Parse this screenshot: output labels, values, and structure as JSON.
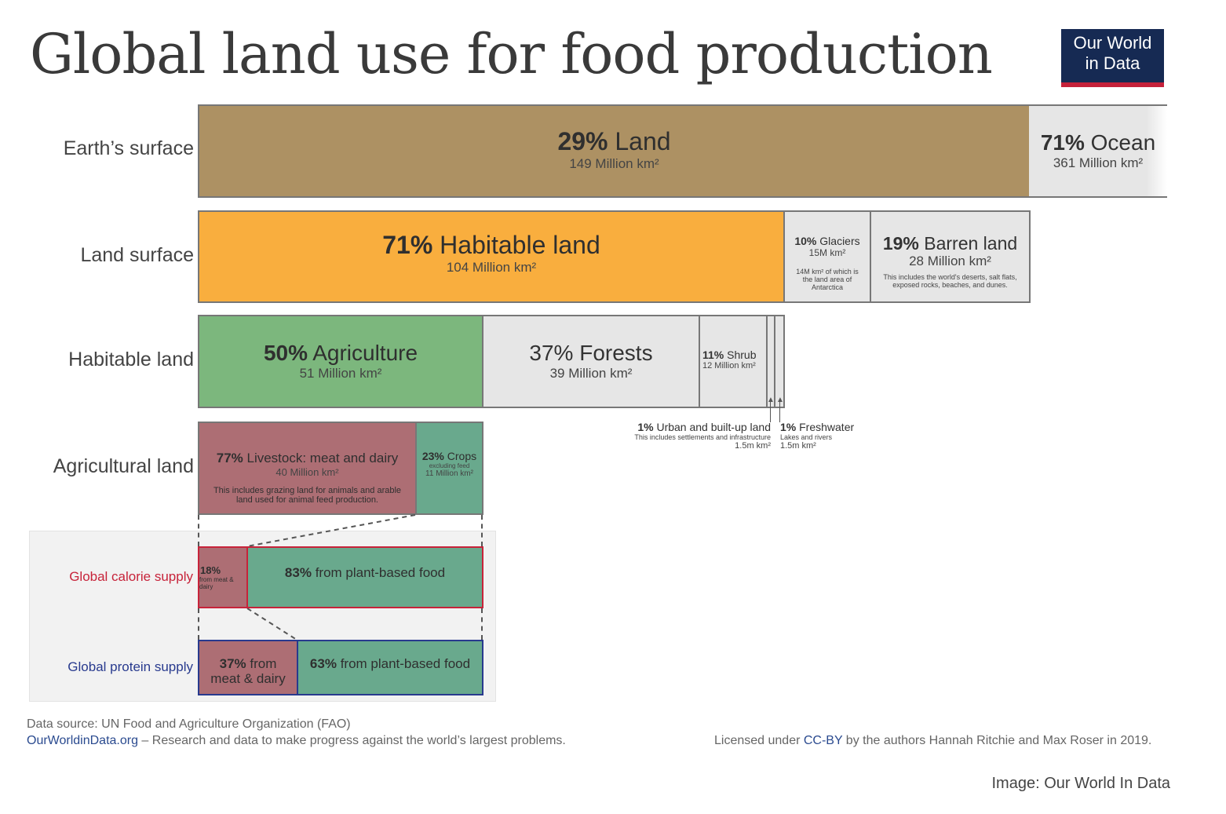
{
  "title": "Global land use for food production",
  "logo": {
    "line1": "Our World",
    "line2": "in Data"
  },
  "row_labels": {
    "earth": "Earth’s surface",
    "land": "Land surface",
    "habitable": "Habitable land",
    "agricultural": "Agricultural land",
    "calorie": "Global calorie supply",
    "protein": "Global protein supply"
  },
  "boxes": {
    "land": {
      "pct": "29%",
      "label": "Land",
      "area": "149 Million km²"
    },
    "ocean": {
      "pct": "71%",
      "label": "Ocean",
      "area": "361 Million km²"
    },
    "habitable": {
      "pct": "71%",
      "label": "Habitable land",
      "area": "104 Million km²"
    },
    "glaciers": {
      "pct": "10%",
      "label": "Glaciers",
      "area": "15M km²",
      "note": "14M km² of which is the land area of Antarctica"
    },
    "barren": {
      "pct": "19%",
      "label": "Barren land",
      "area": "28 Million km²",
      "note": "This includes the world's deserts, salt flats, exposed rocks, beaches, and dunes."
    },
    "agriculture": {
      "pct": "50%",
      "label": "Agriculture",
      "area": "51 Million km²"
    },
    "forests": {
      "pct": "37%",
      "label": "Forests",
      "area": "39 Million km²"
    },
    "shrub": {
      "pct": "11%",
      "label": "Shrub",
      "area": "12 Million km²"
    },
    "urban": {
      "pct": "1%",
      "label": "Urban and built-up land",
      "note": "This includes settlements and infrastructure",
      "area": "1.5m km²"
    },
    "freshwater": {
      "pct": "1%",
      "label": "Freshwater",
      "note": "Lakes and rivers",
      "area": "1.5m km²"
    },
    "livestock": {
      "pct": "77%",
      "label": "Livestock: meat and dairy",
      "area": "40 Million km²",
      "note": "This includes grazing land for animals and arable land used for animal feed production."
    },
    "crops": {
      "pct": "23%",
      "label": "Crops",
      "sub": "excluding feed",
      "area": "11 Million km²"
    },
    "calorie_meat": {
      "pct": "18%",
      "label": "from meat & dairy"
    },
    "calorie_plant": {
      "pct": "83%",
      "label": "from plant-based food"
    },
    "protein_meat": {
      "pct": "37%",
      "label": "from meat & dairy"
    },
    "protein_plant": {
      "pct": "63%",
      "label": "from plant-based food"
    }
  },
  "footer": {
    "source": "Data source: UN Food and Agriculture Organization (FAO)",
    "site": "OurWorldinData.org",
    "tagline": " – Research and data to make progress against the world’s largest problems.",
    "license_pre": "Licensed under ",
    "license_link": "CC-BY",
    "license_post": " by the authors Hannah Ritchie and Max Roser in 2019.",
    "credit": "Image: Our World In Data"
  },
  "colors": {
    "land": "#ad9163",
    "ocean": "#e6e6e6",
    "habitable": "#f9ae3e",
    "grey": "#e6e6e6",
    "agriculture": "#7cb77d",
    "livestock": "#ad6e74",
    "crops": "#69a98d",
    "calorie_border": "#c7233a",
    "protein_border": "#283a8e",
    "panel": "#f2f2f2"
  },
  "chart_data": {
    "type": "bar",
    "title": "Global land use for food production",
    "series": [
      {
        "name": "Earth’s surface",
        "categories": [
          "Land",
          "Ocean"
        ],
        "values": [
          29,
          71
        ],
        "area_million_km2": [
          149,
          361
        ]
      },
      {
        "name": "Land surface",
        "categories": [
          "Habitable land",
          "Glaciers",
          "Barren land"
        ],
        "values": [
          71,
          10,
          19
        ],
        "area_million_km2": [
          104,
          15,
          28
        ]
      },
      {
        "name": "Habitable land",
        "categories": [
          "Agriculture",
          "Forests",
          "Shrub",
          "Urban and built-up land",
          "Freshwater"
        ],
        "values": [
          50,
          37,
          11,
          1,
          1
        ],
        "area_million_km2": [
          51,
          39,
          12,
          1.5,
          1.5
        ]
      },
      {
        "name": "Agricultural land",
        "categories": [
          "Livestock: meat and dairy",
          "Crops"
        ],
        "values": [
          77,
          23
        ],
        "area_million_km2": [
          40,
          11
        ]
      },
      {
        "name": "Global calorie supply",
        "categories": [
          "from meat & dairy",
          "from plant-based food"
        ],
        "values": [
          18,
          83
        ]
      },
      {
        "name": "Global protein supply",
        "categories": [
          "from meat & dairy",
          "from plant-based food"
        ],
        "values": [
          37,
          63
        ]
      }
    ]
  }
}
